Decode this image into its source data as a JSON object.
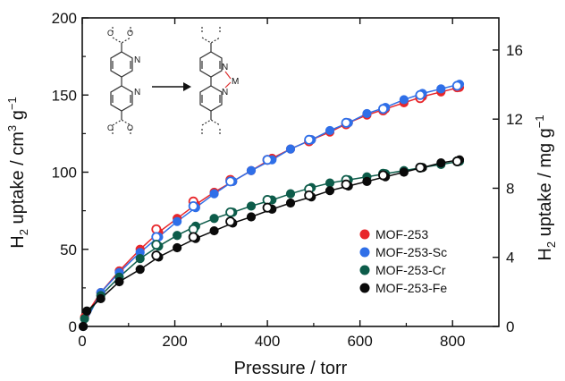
{
  "chart_data": {
    "type": "scatter",
    "xlabel": "Pressure / torr",
    "ylabel_left": "H2 uptake / cm3 g-1",
    "ylabel_right": "H2 uptake / mg g-1",
    "xlim": [
      0,
      900
    ],
    "ylim_left": [
      0,
      200
    ],
    "ylim_right": [
      0,
      17.86
    ],
    "xticks": [
      0,
      200,
      400,
      600,
      800
    ],
    "yticks_left": [
      0,
      50,
      100,
      150,
      200
    ],
    "yticks_right": [
      0,
      4,
      8,
      12,
      16
    ],
    "legend_position": "lower-right",
    "legend": [
      "MOF-253",
      "MOF-253-Sc",
      "MOF-253-Cr",
      "MOF-253-Fe"
    ],
    "colors": {
      "MOF-253": "#e8262a",
      "MOF-253-Sc": "#2f6fe8",
      "MOF-253-Cr": "#0d5c4a",
      "MOF-253-Fe": "#0a0a0a"
    },
    "markers": "filled = adsorption, open = desorption",
    "series": [
      {
        "name": "MOF-253",
        "color": "#e8262a",
        "adsorption": [
          [
            2,
            0
          ],
          [
            5,
            6
          ],
          [
            40,
            22
          ],
          [
            80,
            36
          ],
          [
            125,
            50
          ],
          [
            165,
            61
          ],
          [
            205,
            70
          ],
          [
            245,
            79
          ],
          [
            285,
            87
          ],
          [
            325,
            94
          ],
          [
            365,
            101
          ],
          [
            410,
            109
          ],
          [
            450,
            115
          ],
          [
            495,
            121
          ],
          [
            535,
            126
          ],
          [
            575,
            132
          ],
          [
            615,
            137
          ],
          [
            655,
            141
          ],
          [
            695,
            145
          ],
          [
            735,
            149
          ],
          [
            775,
            152
          ],
          [
            815,
            155
          ]
        ],
        "desorption": [
          [
            160,
            63
          ],
          [
            240,
            81
          ],
          [
            320,
            95
          ],
          [
            400,
            108
          ],
          [
            490,
            120
          ],
          [
            570,
            131
          ],
          [
            650,
            140
          ],
          [
            730,
            148
          ],
          [
            810,
            155
          ]
        ]
      },
      {
        "name": "MOF-253-Sc",
        "color": "#2f6fe8",
        "adsorption": [
          [
            2,
            0
          ],
          [
            40,
            22
          ],
          [
            80,
            35
          ],
          [
            125,
            48
          ],
          [
            165,
            58
          ],
          [
            205,
            68
          ],
          [
            245,
            77
          ],
          [
            285,
            86
          ],
          [
            325,
            94
          ],
          [
            365,
            101
          ],
          [
            410,
            108
          ],
          [
            450,
            115
          ],
          [
            495,
            121
          ],
          [
            535,
            127
          ],
          [
            575,
            132
          ],
          [
            615,
            138
          ],
          [
            655,
            142
          ],
          [
            695,
            147
          ],
          [
            735,
            151
          ],
          [
            775,
            154
          ],
          [
            815,
            157
          ]
        ],
        "desorption": [
          [
            160,
            58
          ],
          [
            240,
            78
          ],
          [
            320,
            94
          ],
          [
            400,
            108
          ],
          [
            490,
            121
          ],
          [
            570,
            132
          ],
          [
            650,
            141
          ],
          [
            730,
            150
          ],
          [
            810,
            156
          ]
        ]
      },
      {
        "name": "MOF-253-Cr",
        "color": "#0d5c4a",
        "adsorption": [
          [
            2,
            0
          ],
          [
            5,
            5
          ],
          [
            40,
            20
          ],
          [
            80,
            32
          ],
          [
            125,
            44
          ],
          [
            165,
            52
          ],
          [
            205,
            59
          ],
          [
            245,
            65
          ],
          [
            285,
            70
          ],
          [
            325,
            74
          ],
          [
            365,
            78
          ],
          [
            410,
            82
          ],
          [
            450,
            86
          ],
          [
            495,
            90
          ],
          [
            535,
            93
          ],
          [
            575,
            95
          ],
          [
            615,
            97
          ],
          [
            655,
            99
          ],
          [
            695,
            101
          ],
          [
            735,
            103
          ],
          [
            775,
            105
          ],
          [
            815,
            107
          ]
        ],
        "desorption": [
          [
            160,
            53
          ],
          [
            240,
            63
          ],
          [
            320,
            74
          ],
          [
            400,
            82
          ],
          [
            490,
            89
          ],
          [
            570,
            95
          ],
          [
            650,
            99
          ],
          [
            730,
            103
          ],
          [
            810,
            107
          ]
        ]
      },
      {
        "name": "MOF-253-Fe",
        "color": "#0a0a0a",
        "adsorption": [
          [
            2,
            0
          ],
          [
            10,
            10
          ],
          [
            40,
            18
          ],
          [
            80,
            29
          ],
          [
            125,
            37
          ],
          [
            165,
            45
          ],
          [
            205,
            51
          ],
          [
            245,
            57
          ],
          [
            285,
            62
          ],
          [
            325,
            67
          ],
          [
            365,
            71
          ],
          [
            410,
            76
          ],
          [
            450,
            80
          ],
          [
            495,
            84
          ],
          [
            535,
            88
          ],
          [
            575,
            91
          ],
          [
            615,
            94
          ],
          [
            655,
            97
          ],
          [
            695,
            100
          ],
          [
            735,
            103
          ],
          [
            775,
            106
          ],
          [
            815,
            108
          ]
        ],
        "desorption": [
          [
            160,
            46
          ],
          [
            240,
            58
          ],
          [
            320,
            68
          ],
          [
            400,
            77
          ],
          [
            490,
            85
          ],
          [
            570,
            92
          ],
          [
            650,
            98
          ],
          [
            730,
            103
          ],
          [
            810,
            107
          ]
        ]
      }
    ]
  }
}
